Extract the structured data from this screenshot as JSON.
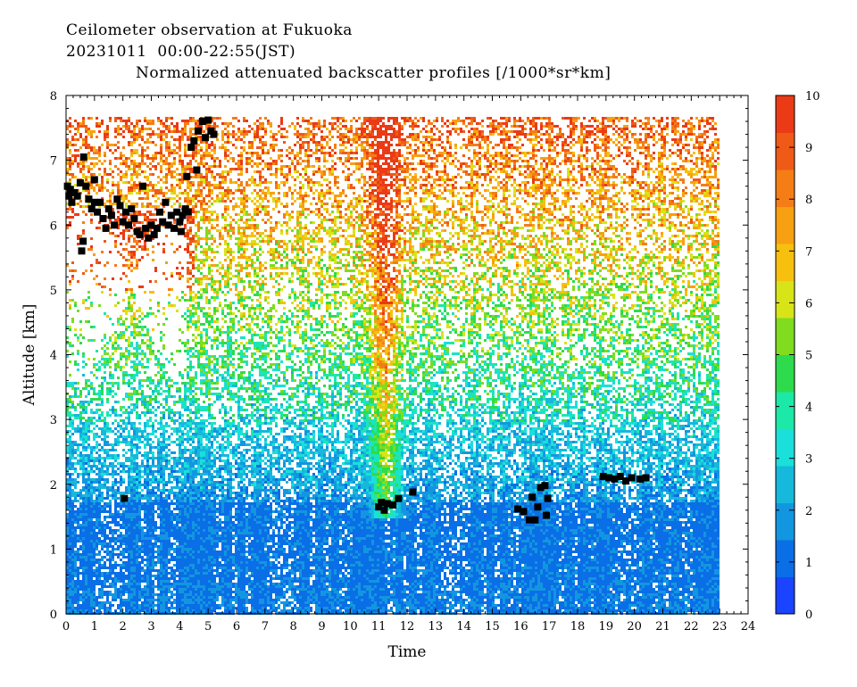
{
  "header": {
    "line1": "Ceilometer observation at Fukuoka",
    "line2": "20231011  00:00-22:55(JST)",
    "line3": "Normalized attenuated backscatter profiles [/1000*sr*km]"
  },
  "chart_data": {
    "type": "heatmap",
    "xlabel": "Time",
    "ylabel": "Altitude [km]",
    "xlim": [
      0,
      24
    ],
    "ylim": [
      0,
      8
    ],
    "data_xlim": [
      0,
      22.92
    ],
    "data_ylim": [
      0,
      7.67
    ],
    "x_ticks": [
      "0",
      "1",
      "2",
      "3",
      "4",
      "5",
      "6",
      "7",
      "8",
      "9",
      "10",
      "11",
      "12",
      "13",
      "14",
      "15",
      "16",
      "17",
      "18",
      "19",
      "20",
      "21",
      "22",
      "23",
      "24"
    ],
    "y_ticks": [
      "0",
      "1",
      "2",
      "3",
      "4",
      "5",
      "6",
      "7",
      "8"
    ],
    "colorbar": {
      "min": 0,
      "max": 10,
      "ticks": [
        "0",
        "1",
        "2",
        "3",
        "4",
        "5",
        "6",
        "7",
        "8",
        "9",
        "10"
      ],
      "colors": [
        "#1a44ff",
        "#0a6ee6",
        "#1396e0",
        "#16b8dc",
        "#1adfdb",
        "#1ce8a8",
        "#2edb4c",
        "#7fdc1e",
        "#d8e418",
        "#f7c00e",
        "#f7a012",
        "#f47d16",
        "#ef5a16",
        "#ea3a16"
      ]
    },
    "cloud_base_points": [
      {
        "t": 0.05,
        "h": 6.6
      },
      {
        "t": 0.1,
        "h": 6.45
      },
      {
        "t": 0.15,
        "h": 6.55
      },
      {
        "t": 0.2,
        "h": 6.35
      },
      {
        "t": 0.3,
        "h": 6.5
      },
      {
        "t": 0.4,
        "h": 6.45
      },
      {
        "t": 0.5,
        "h": 6.65
      },
      {
        "t": 0.55,
        "h": 5.6
      },
      {
        "t": 0.6,
        "h": 5.75
      },
      {
        "t": 0.62,
        "h": 7.05
      },
      {
        "t": 0.7,
        "h": 6.6
      },
      {
        "t": 0.8,
        "h": 6.4
      },
      {
        "t": 0.9,
        "h": 6.25
      },
      {
        "t": 1.0,
        "h": 6.35
      },
      {
        "t": 1.0,
        "h": 6.7
      },
      {
        "t": 1.1,
        "h": 6.2
      },
      {
        "t": 1.2,
        "h": 6.35
      },
      {
        "t": 1.3,
        "h": 6.1
      },
      {
        "t": 1.4,
        "h": 5.95
      },
      {
        "t": 1.5,
        "h": 6.25
      },
      {
        "t": 1.6,
        "h": 6.15
      },
      {
        "t": 1.7,
        "h": 6.0
      },
      {
        "t": 1.8,
        "h": 6.4
      },
      {
        "t": 1.9,
        "h": 6.3
      },
      {
        "t": 2.0,
        "h": 6.05
      },
      {
        "t": 2.05,
        "h": 1.78
      },
      {
        "t": 2.1,
        "h": 6.2
      },
      {
        "t": 2.2,
        "h": 6.0
      },
      {
        "t": 2.3,
        "h": 6.25
      },
      {
        "t": 2.4,
        "h": 6.1
      },
      {
        "t": 2.5,
        "h": 5.9
      },
      {
        "t": 2.6,
        "h": 5.85
      },
      {
        "t": 2.7,
        "h": 6.6
      },
      {
        "t": 2.8,
        "h": 5.95
      },
      {
        "t": 2.9,
        "h": 5.8
      },
      {
        "t": 3.0,
        "h": 6.0
      },
      {
        "t": 3.1,
        "h": 5.85
      },
      {
        "t": 3.2,
        "h": 5.95
      },
      {
        "t": 3.3,
        "h": 6.2
      },
      {
        "t": 3.4,
        "h": 6.05
      },
      {
        "t": 3.5,
        "h": 6.35
      },
      {
        "t": 3.6,
        "h": 6.0
      },
      {
        "t": 3.7,
        "h": 6.15
      },
      {
        "t": 3.8,
        "h": 5.95
      },
      {
        "t": 3.9,
        "h": 6.2
      },
      {
        "t": 4.0,
        "h": 6.05
      },
      {
        "t": 4.05,
        "h": 5.9
      },
      {
        "t": 4.1,
        "h": 6.15
      },
      {
        "t": 4.2,
        "h": 6.25
      },
      {
        "t": 4.25,
        "h": 6.75
      },
      {
        "t": 4.3,
        "h": 6.2
      },
      {
        "t": 4.4,
        "h": 7.2
      },
      {
        "t": 4.5,
        "h": 7.3
      },
      {
        "t": 4.6,
        "h": 6.85
      },
      {
        "t": 4.65,
        "h": 7.45
      },
      {
        "t": 4.8,
        "h": 7.6
      },
      {
        "t": 4.9,
        "h": 7.35
      },
      {
        "t": 5.0,
        "h": 7.62
      },
      {
        "t": 5.1,
        "h": 7.45
      },
      {
        "t": 5.2,
        "h": 7.4
      },
      {
        "t": 11.0,
        "h": 1.65
      },
      {
        "t": 11.1,
        "h": 1.72
      },
      {
        "t": 11.2,
        "h": 1.6
      },
      {
        "t": 11.3,
        "h": 1.7
      },
      {
        "t": 11.5,
        "h": 1.68
      },
      {
        "t": 11.7,
        "h": 1.78
      },
      {
        "t": 12.2,
        "h": 1.88
      },
      {
        "t": 15.9,
        "h": 1.62
      },
      {
        "t": 16.1,
        "h": 1.58
      },
      {
        "t": 16.3,
        "h": 1.45
      },
      {
        "t": 16.4,
        "h": 1.8
      },
      {
        "t": 16.5,
        "h": 1.45
      },
      {
        "t": 16.6,
        "h": 1.65
      },
      {
        "t": 16.7,
        "h": 1.95
      },
      {
        "t": 16.85,
        "h": 1.98
      },
      {
        "t": 16.9,
        "h": 1.52
      },
      {
        "t": 16.95,
        "h": 1.78
      },
      {
        "t": 18.9,
        "h": 2.12
      },
      {
        "t": 19.1,
        "h": 2.1
      },
      {
        "t": 19.3,
        "h": 2.08
      },
      {
        "t": 19.5,
        "h": 2.12
      },
      {
        "t": 19.7,
        "h": 2.05
      },
      {
        "t": 19.9,
        "h": 2.1
      },
      {
        "t": 20.2,
        "h": 2.08
      },
      {
        "t": 20.4,
        "h": 2.1
      }
    ]
  }
}
